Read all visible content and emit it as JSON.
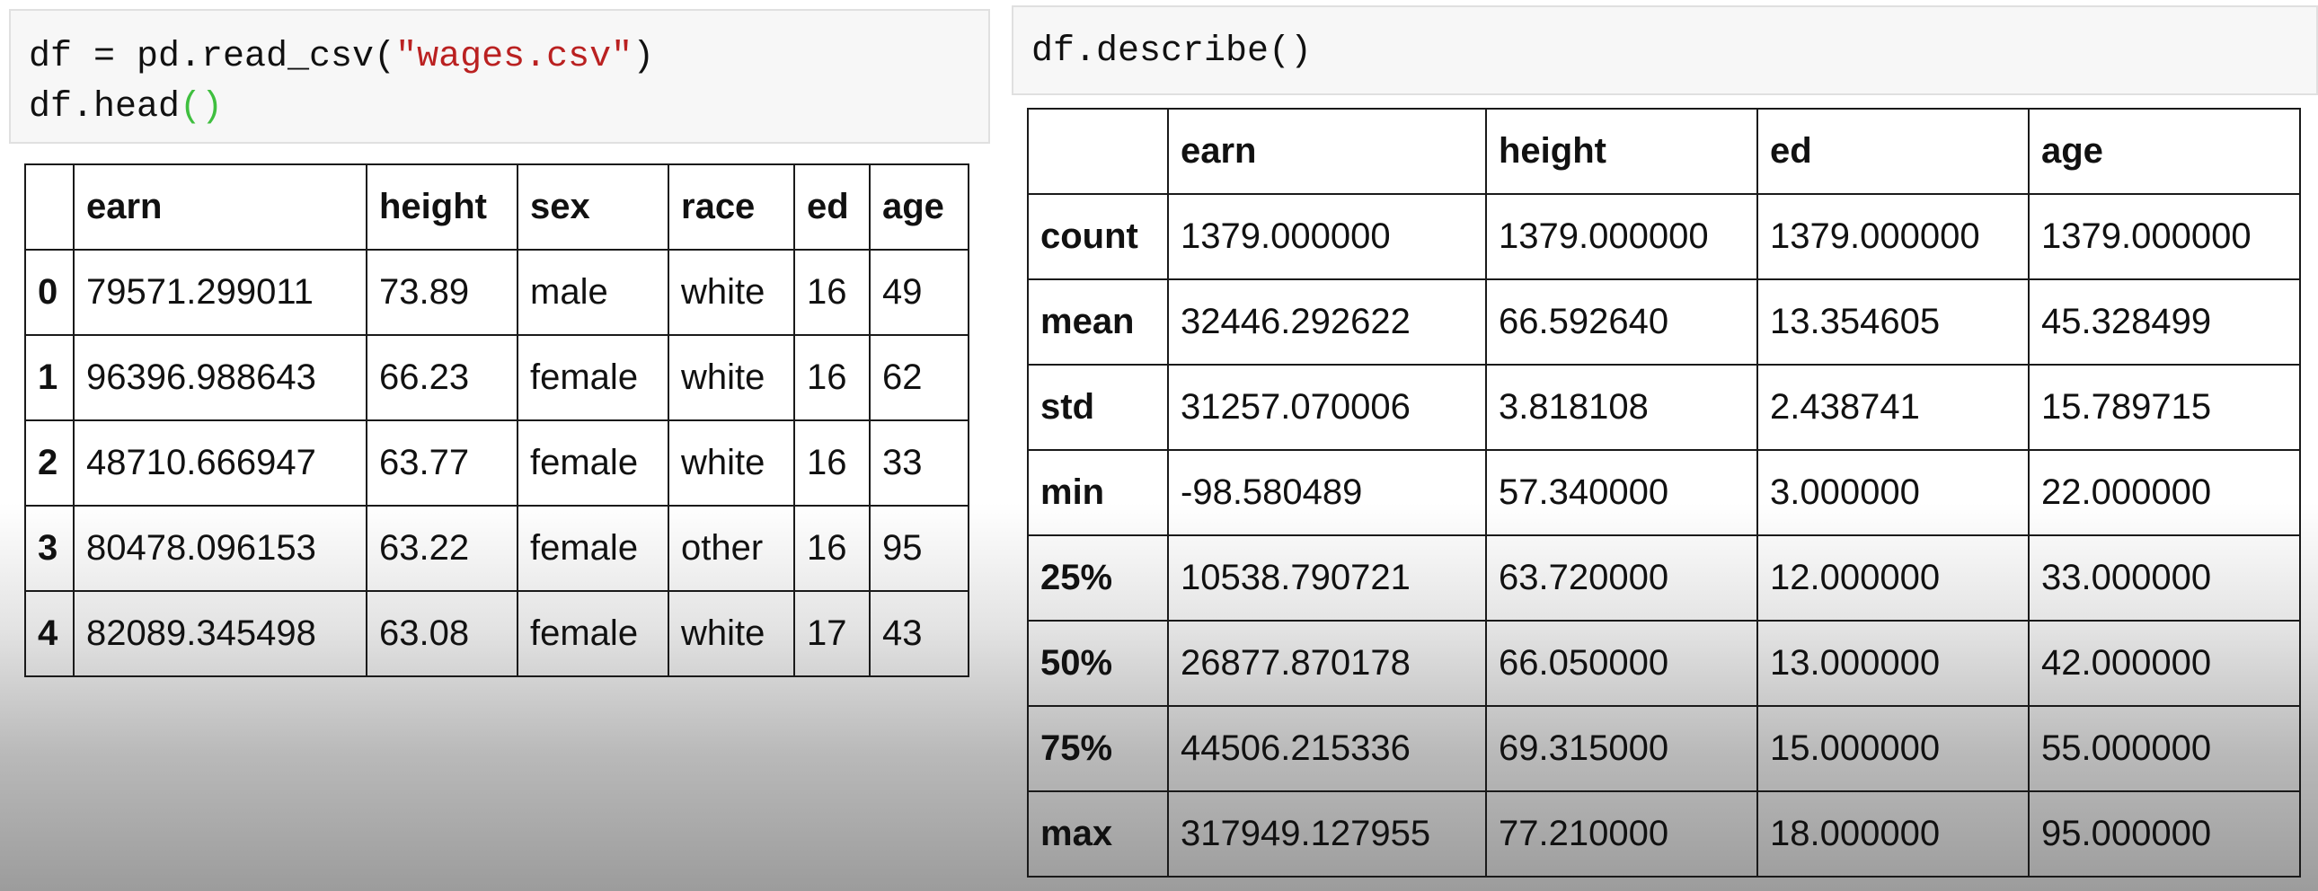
{
  "cells": {
    "left": {
      "line1": {
        "pre": "df = pd.read_csv(",
        "str": "\"wages.csv\"",
        "post": ")"
      },
      "line2": {
        "pre": "df.head",
        "parens": "()"
      }
    },
    "right": {
      "code": "df.describe()"
    }
  },
  "head_table": {
    "columns": [
      "earn",
      "height",
      "sex",
      "race",
      "ed",
      "age"
    ],
    "rows": [
      {
        "index": "0",
        "cells": [
          "79571.299011",
          "73.89",
          "male",
          "white",
          "16",
          "49"
        ]
      },
      {
        "index": "1",
        "cells": [
          "96396.988643",
          "66.23",
          "female",
          "white",
          "16",
          "62"
        ]
      },
      {
        "index": "2",
        "cells": [
          "48710.666947",
          "63.77",
          "female",
          "white",
          "16",
          "33"
        ]
      },
      {
        "index": "3",
        "cells": [
          "80478.096153",
          "63.22",
          "female",
          "other",
          "16",
          "95"
        ]
      },
      {
        "index": "4",
        "cells": [
          "82089.345498",
          "63.08",
          "female",
          "white",
          "17",
          "43"
        ]
      }
    ]
  },
  "describe_table": {
    "columns": [
      "earn",
      "height",
      "ed",
      "age"
    ],
    "rows": [
      {
        "index": "count",
        "cells": [
          "1379.000000",
          "1379.000000",
          "1379.000000",
          "1379.000000"
        ]
      },
      {
        "index": "mean",
        "cells": [
          "32446.292622",
          "66.592640",
          "13.354605",
          "45.328499"
        ]
      },
      {
        "index": "std",
        "cells": [
          "31257.070006",
          "3.818108",
          "2.438741",
          "15.789715"
        ]
      },
      {
        "index": "min",
        "cells": [
          "-98.580489",
          "57.340000",
          "3.000000",
          "22.000000"
        ]
      },
      {
        "index": "25%",
        "cells": [
          "10538.790721",
          "63.720000",
          "12.000000",
          "33.000000"
        ]
      },
      {
        "index": "50%",
        "cells": [
          "26877.870178",
          "66.050000",
          "13.000000",
          "42.000000"
        ]
      },
      {
        "index": "75%",
        "cells": [
          "44506.215336",
          "69.315000",
          "15.000000",
          "55.000000"
        ]
      },
      {
        "index": "max",
        "cells": [
          "317949.127955",
          "77.210000",
          "18.000000",
          "95.000000"
        ]
      }
    ]
  },
  "colors": {
    "string": "#ba2121",
    "paren": "#3fbf3f",
    "cell_bg": "#f7f7f7"
  }
}
